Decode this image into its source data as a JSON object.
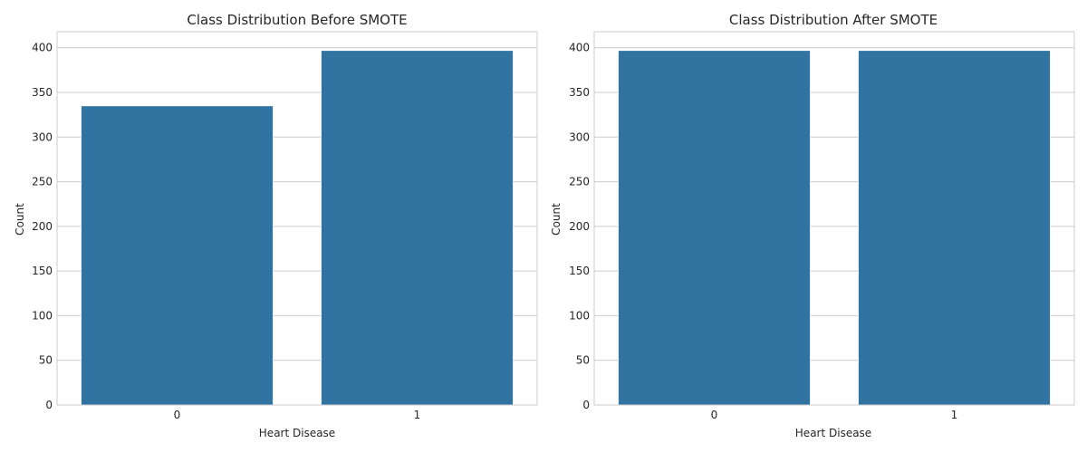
{
  "colors": {
    "bar": "#3274a1",
    "grid": "#cccccc",
    "text": "#262626"
  },
  "chart_data": [
    {
      "type": "bar",
      "title": "Class Distribution Before SMOTE",
      "xlabel": "Heart Disease",
      "ylabel": "Count",
      "categories": [
        "0",
        "1"
      ],
      "values": [
        335,
        397
      ],
      "ylim": [
        0,
        418
      ],
      "yticks": [
        0,
        50,
        100,
        150,
        200,
        250,
        300,
        350,
        400
      ],
      "grid": "y"
    },
    {
      "type": "bar",
      "title": "Class Distribution After SMOTE",
      "xlabel": "Heart Disease",
      "ylabel": "Count",
      "categories": [
        "0",
        "1"
      ],
      "values": [
        397,
        397
      ],
      "ylim": [
        0,
        418
      ],
      "yticks": [
        0,
        50,
        100,
        150,
        200,
        250,
        300,
        350,
        400
      ],
      "grid": "y"
    }
  ]
}
